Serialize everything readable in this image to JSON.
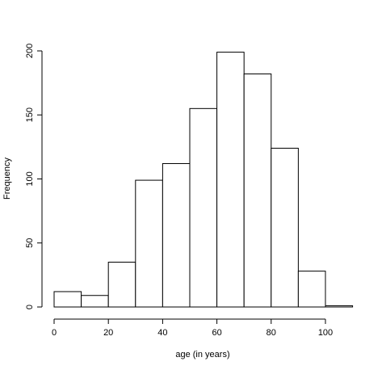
{
  "chart_data": {
    "type": "bar",
    "xlabel": "age (in years)",
    "ylabel": "Frequency",
    "xlim": [
      0,
      110
    ],
    "ylim": [
      0,
      200
    ],
    "x_ticks": [
      0,
      20,
      40,
      60,
      80,
      100
    ],
    "y_ticks": [
      0,
      50,
      100,
      150,
      200
    ],
    "grid": false,
    "bins": [
      {
        "x0": 0,
        "x1": 10,
        "count": 12
      },
      {
        "x0": 10,
        "x1": 20,
        "count": 9
      },
      {
        "x0": 20,
        "x1": 30,
        "count": 35
      },
      {
        "x0": 30,
        "x1": 40,
        "count": 99
      },
      {
        "x0": 40,
        "x1": 50,
        "count": 112
      },
      {
        "x0": 50,
        "x1": 60,
        "count": 155
      },
      {
        "x0": 60,
        "x1": 70,
        "count": 199
      },
      {
        "x0": 70,
        "x1": 80,
        "count": 182
      },
      {
        "x0": 80,
        "x1": 90,
        "count": 124
      },
      {
        "x0": 90,
        "x1": 100,
        "count": 28
      },
      {
        "x0": 100,
        "x1": 110,
        "count": 1
      }
    ]
  }
}
